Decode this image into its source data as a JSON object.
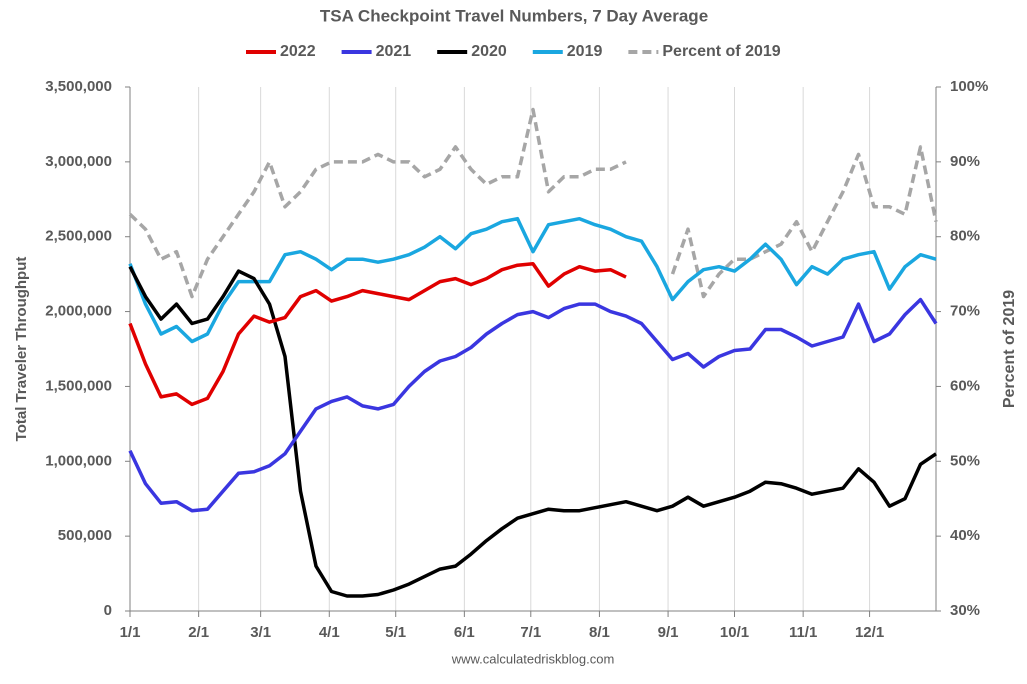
{
  "chart_data": {
    "type": "line",
    "title": "TSA Checkpoint Travel Numbers, 7 Day Average",
    "y_label": "Total Traveler Throughput",
    "y2_label": "Percent of 2019",
    "source": "www.calculatedriskblog.com",
    "grid": "x",
    "legend": "top",
    "xlim": [
      0,
      364
    ],
    "xticks": [
      {
        "value": 0,
        "label": "1/1"
      },
      {
        "value": 31,
        "label": "2/1"
      },
      {
        "value": 59,
        "label": "3/1"
      },
      {
        "value": 90,
        "label": "4/1"
      },
      {
        "value": 120,
        "label": "5/1"
      },
      {
        "value": 151,
        "label": "6/1"
      },
      {
        "value": 181,
        "label": "7/1"
      },
      {
        "value": 212,
        "label": "8/1"
      },
      {
        "value": 243,
        "label": "9/1"
      },
      {
        "value": 273,
        "label": "10/1"
      },
      {
        "value": 304,
        "label": "11/1"
      },
      {
        "value": 334,
        "label": "12/1"
      }
    ],
    "ylim": [
      0,
      3500000
    ],
    "yticks": [
      0,
      {
        "value": 500000,
        "label": "500,000"
      },
      {
        "value": 1000000,
        "label": "1,000,000"
      },
      {
        "value": 1500000,
        "label": "1,500,000"
      },
      {
        "value": 2000000,
        "label": "2,000,000"
      },
      {
        "value": 2500000,
        "label": "2,500,000"
      },
      {
        "value": 3000000,
        "label": "3,000,000"
      },
      {
        "value": 3500000,
        "label": "3,500,000"
      }
    ],
    "y2lim": [
      30,
      100
    ],
    "y2ticks": [
      {
        "value": 30,
        "label": "30%"
      },
      {
        "value": 40,
        "label": "40%"
      },
      {
        "value": 50,
        "label": "50%"
      },
      {
        "value": 60,
        "label": "60%"
      },
      {
        "value": 70,
        "label": "70%"
      },
      {
        "value": 80,
        "label": "80%"
      },
      {
        "value": 90,
        "label": "90%"
      },
      {
        "value": 100,
        "label": "100%"
      }
    ],
    "x": [
      0,
      7,
      14,
      21,
      28,
      35,
      42,
      49,
      56,
      63,
      70,
      77,
      84,
      91,
      98,
      105,
      112,
      119,
      126,
      133,
      140,
      147,
      154,
      161,
      168,
      175,
      182,
      189,
      196,
      203,
      210,
      217,
      224,
      231,
      238,
      245,
      252,
      259,
      266,
      273,
      280,
      287,
      294,
      301,
      308,
      315,
      322,
      329,
      336,
      343,
      350,
      357,
      364
    ],
    "series": [
      {
        "name": "2022",
        "color": "#e00000",
        "values": [
          1920000,
          1650000,
          1430000,
          1450000,
          1380000,
          1420000,
          1600000,
          1850000,
          1970000,
          1930000,
          1960000,
          2100000,
          2140000,
          2070000,
          2100000,
          2140000,
          2120000,
          2100000,
          2080000,
          2140000,
          2200000,
          2220000,
          2180000,
          2220000,
          2280000,
          2310000,
          2320000,
          2170000,
          2250000,
          2300000,
          2270000,
          2280000,
          2230000,
          null,
          null,
          null,
          null,
          null,
          null,
          null,
          null,
          null,
          null,
          null,
          null,
          null,
          null,
          null,
          null,
          null,
          null,
          null,
          null
        ]
      },
      {
        "name": "2021",
        "color": "#3a36e0",
        "values": [
          1070000,
          850000,
          720000,
          730000,
          670000,
          680000,
          800000,
          920000,
          930000,
          970000,
          1050000,
          1200000,
          1350000,
          1400000,
          1430000,
          1370000,
          1350000,
          1380000,
          1500000,
          1600000,
          1670000,
          1700000,
          1760000,
          1850000,
          1920000,
          1980000,
          2000000,
          1960000,
          2020000,
          2050000,
          2050000,
          2000000,
          1970000,
          1920000,
          1800000,
          1680000,
          1720000,
          1630000,
          1700000,
          1740000,
          1750000,
          1880000,
          1880000,
          1830000,
          1770000,
          1800000,
          1830000,
          2050000,
          1800000,
          1850000,
          1980000,
          2080000,
          1920000
        ]
      },
      {
        "name": "2020",
        "color": "#000000",
        "values": [
          2300000,
          2100000,
          1950000,
          2050000,
          1920000,
          1950000,
          2100000,
          2270000,
          2220000,
          2050000,
          1700000,
          800000,
          300000,
          130000,
          100000,
          100000,
          110000,
          140000,
          180000,
          230000,
          280000,
          300000,
          380000,
          470000,
          550000,
          620000,
          650000,
          680000,
          670000,
          670000,
          690000,
          710000,
          730000,
          700000,
          670000,
          700000,
          760000,
          700000,
          730000,
          760000,
          800000,
          860000,
          850000,
          820000,
          780000,
          800000,
          820000,
          950000,
          860000,
          700000,
          750000,
          980000,
          1050000
        ]
      },
      {
        "name": "2019",
        "color": "#1aa7e0",
        "values": [
          2320000,
          2050000,
          1850000,
          1900000,
          1800000,
          1850000,
          2050000,
          2200000,
          2200000,
          2200000,
          2380000,
          2400000,
          2350000,
          2280000,
          2350000,
          2350000,
          2330000,
          2350000,
          2380000,
          2430000,
          2500000,
          2420000,
          2520000,
          2550000,
          2600000,
          2620000,
          2400000,
          2580000,
          2600000,
          2620000,
          2580000,
          2550000,
          2500000,
          2470000,
          2300000,
          2080000,
          2200000,
          2280000,
          2300000,
          2270000,
          2350000,
          2450000,
          2350000,
          2180000,
          2300000,
          2250000,
          2350000,
          2380000,
          2400000,
          2150000,
          2300000,
          2380000,
          2350000
        ]
      },
      {
        "name": "Percent of 2019",
        "color": "#a6a6a6",
        "dashed": true,
        "axis": "y2",
        "values": [
          83,
          81,
          77,
          78,
          72,
          77,
          80,
          83,
          86,
          90,
          84,
          86,
          89,
          90,
          90,
          90,
          91,
          90,
          90,
          88,
          89,
          92,
          89,
          87,
          88,
          88,
          97,
          86,
          88,
          88,
          89,
          89,
          90,
          null,
          null,
          75,
          81,
          72,
          75,
          77,
          77,
          78,
          79,
          82,
          78,
          82,
          86,
          91,
          84,
          84,
          83,
          92,
          82
        ]
      }
    ]
  }
}
